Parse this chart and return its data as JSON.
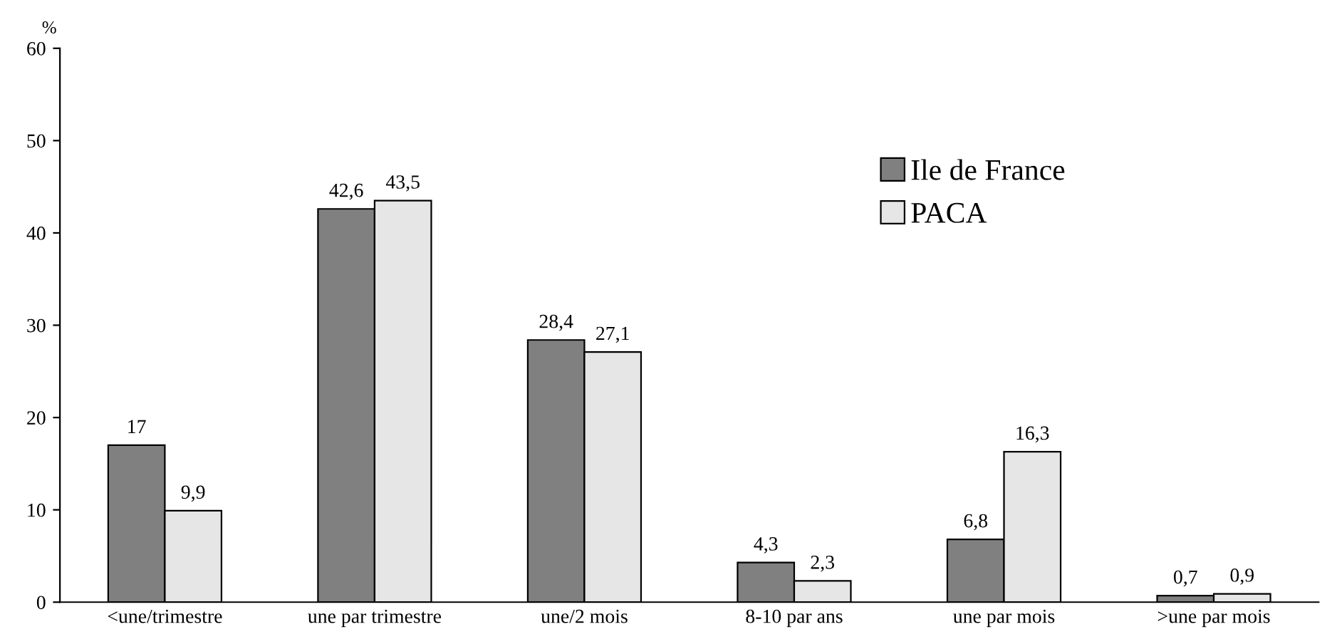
{
  "chart_data": {
    "type": "bar",
    "ylabel": "%",
    "categories": [
      "<une/trimestre",
      "une par trimestre",
      "une/2 mois",
      "8-10 par ans",
      "une par mois",
      ">une par mois"
    ],
    "series": [
      {
        "name": "Ile de France",
        "color": "#808080",
        "values": [
          17,
          42.6,
          28.4,
          4.3,
          6.8,
          0.7
        ],
        "value_labels": [
          "17",
          "42,6",
          "28,4",
          "4,3",
          "6,8",
          "0,7"
        ]
      },
      {
        "name": "PACA",
        "color": "#e6e6e6",
        "values": [
          9.9,
          43.5,
          27.1,
          2.3,
          16.3,
          0.9
        ],
        "value_labels": [
          "9,9",
          "43,5",
          "27,1",
          "2,3",
          "16,3",
          "0,9"
        ]
      }
    ],
    "ylim": [
      0,
      60
    ],
    "yticks": [
      0,
      10,
      20,
      30,
      40,
      50,
      60
    ],
    "grid": false,
    "legend": "top right"
  }
}
